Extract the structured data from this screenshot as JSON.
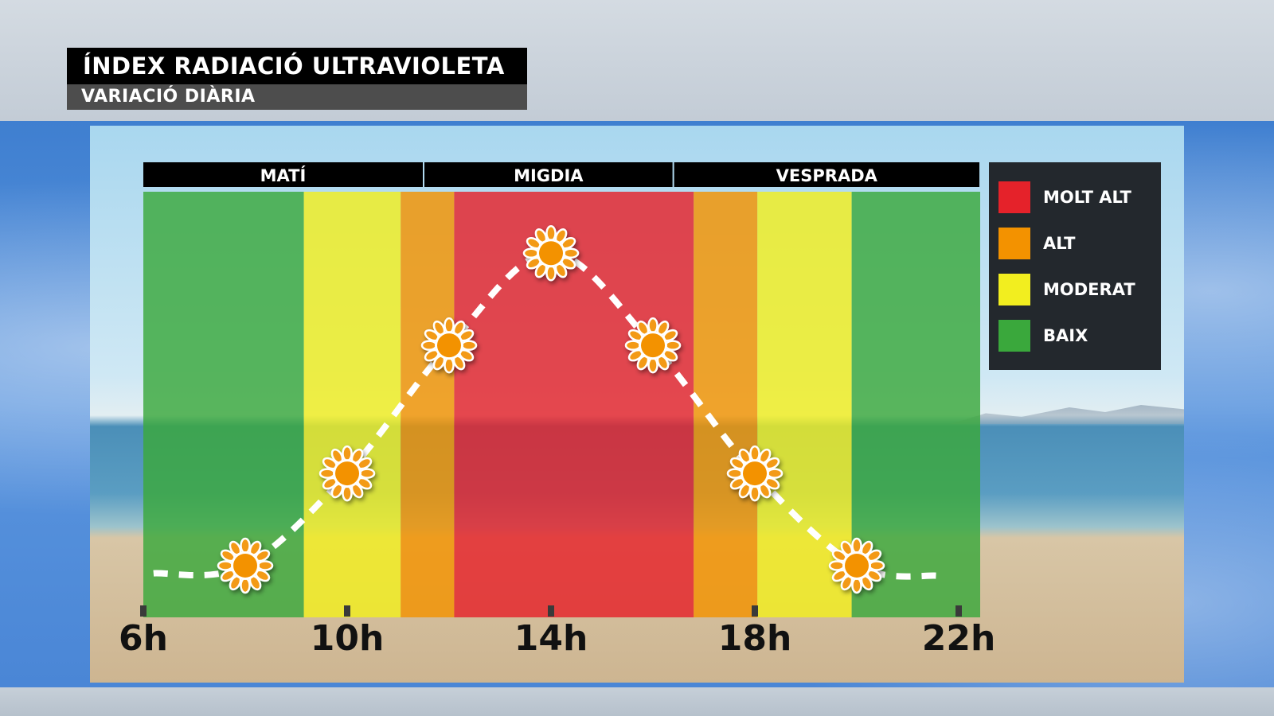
{
  "header": {
    "title": "ÍNDEX RADIACIÓ ULTRAVIOLETA",
    "subtitle": "VARIACIÓ DIÀRIA"
  },
  "colors": {
    "molt_alt": "#e5222a",
    "alt": "#f39200",
    "moderat": "#f2ee1f",
    "baix": "#3aa83c"
  },
  "chart_data": {
    "type": "line",
    "title": "ÍNDEX RADIACIÓ ULTRAVIOLETA",
    "subtitle": "VARIACIÓ DIÀRIA",
    "xlabel": "",
    "ylabel": "",
    "x_ticks": [
      "6h",
      "10h",
      "14h",
      "18h",
      "22h"
    ],
    "x_tick_values": [
      6,
      10,
      14,
      18,
      22
    ],
    "xlim": [
      6,
      22.5
    ],
    "periods": [
      {
        "label": "MATÍ",
        "start": 6,
        "end": 11.5
      },
      {
        "label": "MIGDIA",
        "start": 11.5,
        "end": 16.4
      },
      {
        "label": "VESPRADA",
        "start": 16.4,
        "end": 22.5
      }
    ],
    "bands": [
      {
        "level": "BAIX",
        "start": 6,
        "end": 9.15
      },
      {
        "level": "MODERAT",
        "start": 9.15,
        "end": 11.05
      },
      {
        "level": "ALT",
        "start": 11.05,
        "end": 12.1
      },
      {
        "level": "MOLT ALT",
        "start": 12.1,
        "end": 16.8
      },
      {
        "level": "ALT",
        "start": 16.8,
        "end": 18.05
      },
      {
        "level": "MODERAT",
        "start": 18.05,
        "end": 19.9
      },
      {
        "level": "BAIX",
        "start": 19.9,
        "end": 22.5
      }
    ],
    "series": [
      {
        "x": [
          8,
          10,
          12,
          14,
          16,
          18,
          20
        ],
        "y": [
          0.7,
          2.5,
          5.0,
          6.8,
          5.0,
          2.5,
          0.7
        ]
      }
    ],
    "line_start": {
      "x": 6.2,
      "y": 0.55
    },
    "line_end": {
      "x": 21.6,
      "y": 0.5
    },
    "ylim": [
      0,
      8
    ],
    "legend": [
      {
        "label": "MOLT ALT",
        "color": "#e5222a"
      },
      {
        "label": "ALT",
        "color": "#f39200"
      },
      {
        "label": "MODERAT",
        "color": "#f2ee1f"
      },
      {
        "label": "BAIX",
        "color": "#3aa83c"
      }
    ],
    "legend_position": "right",
    "grid": false
  }
}
